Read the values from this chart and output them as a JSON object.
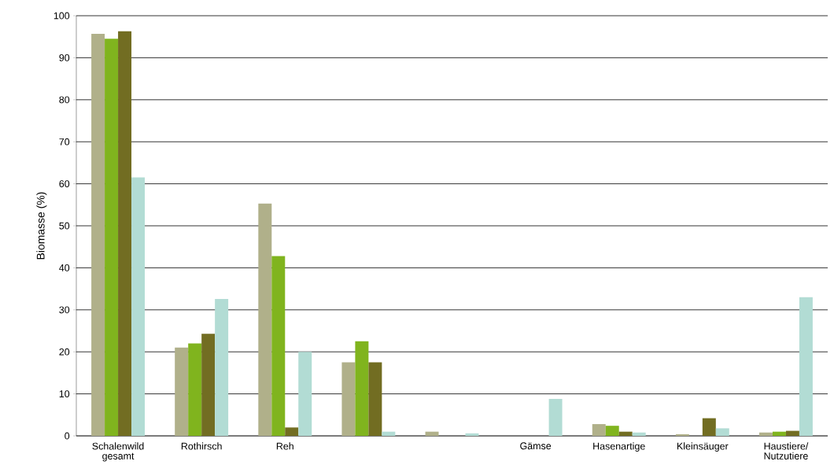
{
  "chart_data": {
    "type": "bar",
    "ylabel": "Biomasse (%)",
    "categories": [
      "Schalenwild gesamt",
      "Rothirsch",
      "Reh",
      null,
      null,
      "Gämse",
      "Hasenartige",
      "Kleinsäuger",
      "Haustiere/ Nutzutiere"
    ],
    "series": [
      {
        "color": "#b0b08a",
        "values": [
          95.7,
          21,
          55.3,
          17.5,
          1,
          0,
          2.8,
          0.4,
          0.8
        ]
      },
      {
        "color": "#80b41e",
        "values": [
          94.5,
          22,
          42.8,
          22.5,
          0,
          0,
          2.4,
          0,
          1
        ]
      },
      {
        "color": "#726d22",
        "values": [
          96.3,
          24.3,
          2,
          17.5,
          0,
          0,
          1,
          4.2,
          1.2
        ]
      },
      {
        "color": "#b2dcd4",
        "values": [
          61.5,
          32.6,
          20,
          1,
          0.6,
          8.8,
          0.8,
          1.8,
          33
        ]
      }
    ],
    "ylim": [
      0,
      100
    ],
    "yticks": [
      0,
      10,
      20,
      30,
      40,
      50,
      60,
      70,
      80,
      90,
      100
    ],
    "grid": "y"
  }
}
